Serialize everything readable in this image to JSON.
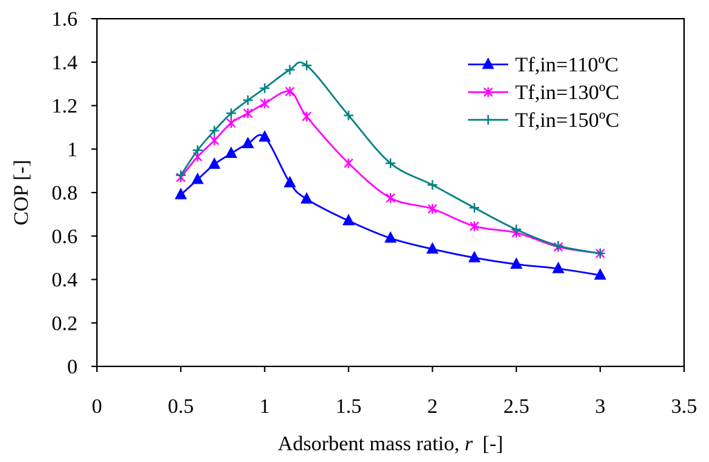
{
  "chart_data": {
    "type": "line",
    "title": "",
    "xlabel_main": "Adsorbent mass ratio, ",
    "xlabel_var": "r",
    "xlabel_unit": "[-]",
    "ylabel": "COP [-]",
    "xlim": [
      0,
      3.5
    ],
    "ylim": [
      0,
      1.6
    ],
    "xticks": [
      0,
      0.5,
      1,
      1.5,
      2,
      2.5,
      3,
      3.5
    ],
    "xtick_labels": [
      "0",
      "0.5",
      "1",
      "1.5",
      "2",
      "2.5",
      "3",
      "3.5"
    ],
    "yticks": [
      0,
      0.2,
      0.4,
      0.6,
      0.8,
      1,
      1.2,
      1.4,
      1.6
    ],
    "ytick_labels": [
      "0",
      "0.2",
      "0.4",
      "0.6",
      "0.8",
      "1",
      "1.2",
      "1.4",
      "1.6"
    ],
    "grid": false,
    "legend_position": "top-right",
    "series": [
      {
        "name": "Tf,in=110ºC",
        "color": "#0000FF",
        "marker": "triangle",
        "x": [
          0.5,
          0.6,
          0.7,
          0.8,
          0.9,
          1.0,
          1.15,
          1.25,
          1.5,
          1.75,
          2.0,
          2.25,
          2.5,
          2.75,
          3.0
        ],
        "y": [
          0.79,
          0.86,
          0.93,
          0.98,
          1.025,
          1.055,
          0.845,
          0.77,
          0.67,
          0.59,
          0.54,
          0.5,
          0.47,
          0.45,
          0.42
        ]
      },
      {
        "name": "Tf,in=130ºC",
        "color": "#FF00FF",
        "marker": "asterisk",
        "x": [
          0.5,
          0.6,
          0.7,
          0.8,
          0.9,
          1.0,
          1.15,
          1.25,
          1.5,
          1.75,
          2.0,
          2.25,
          2.5,
          2.75,
          3.0
        ],
        "y": [
          0.87,
          0.965,
          1.04,
          1.12,
          1.165,
          1.21,
          1.265,
          1.15,
          0.935,
          0.775,
          0.725,
          0.645,
          0.615,
          0.55,
          0.52
        ]
      },
      {
        "name": "Tf,in=150ºC",
        "color": "#008080",
        "marker": "plus",
        "x": [
          0.5,
          0.6,
          0.7,
          0.8,
          0.9,
          1.0,
          1.15,
          1.25,
          1.5,
          1.75,
          2.0,
          2.25,
          2.5,
          2.75,
          3.0
        ],
        "y": [
          0.88,
          0.995,
          1.085,
          1.165,
          1.225,
          1.28,
          1.365,
          1.385,
          1.155,
          0.935,
          0.835,
          0.73,
          0.63,
          0.555,
          0.52
        ]
      }
    ]
  }
}
